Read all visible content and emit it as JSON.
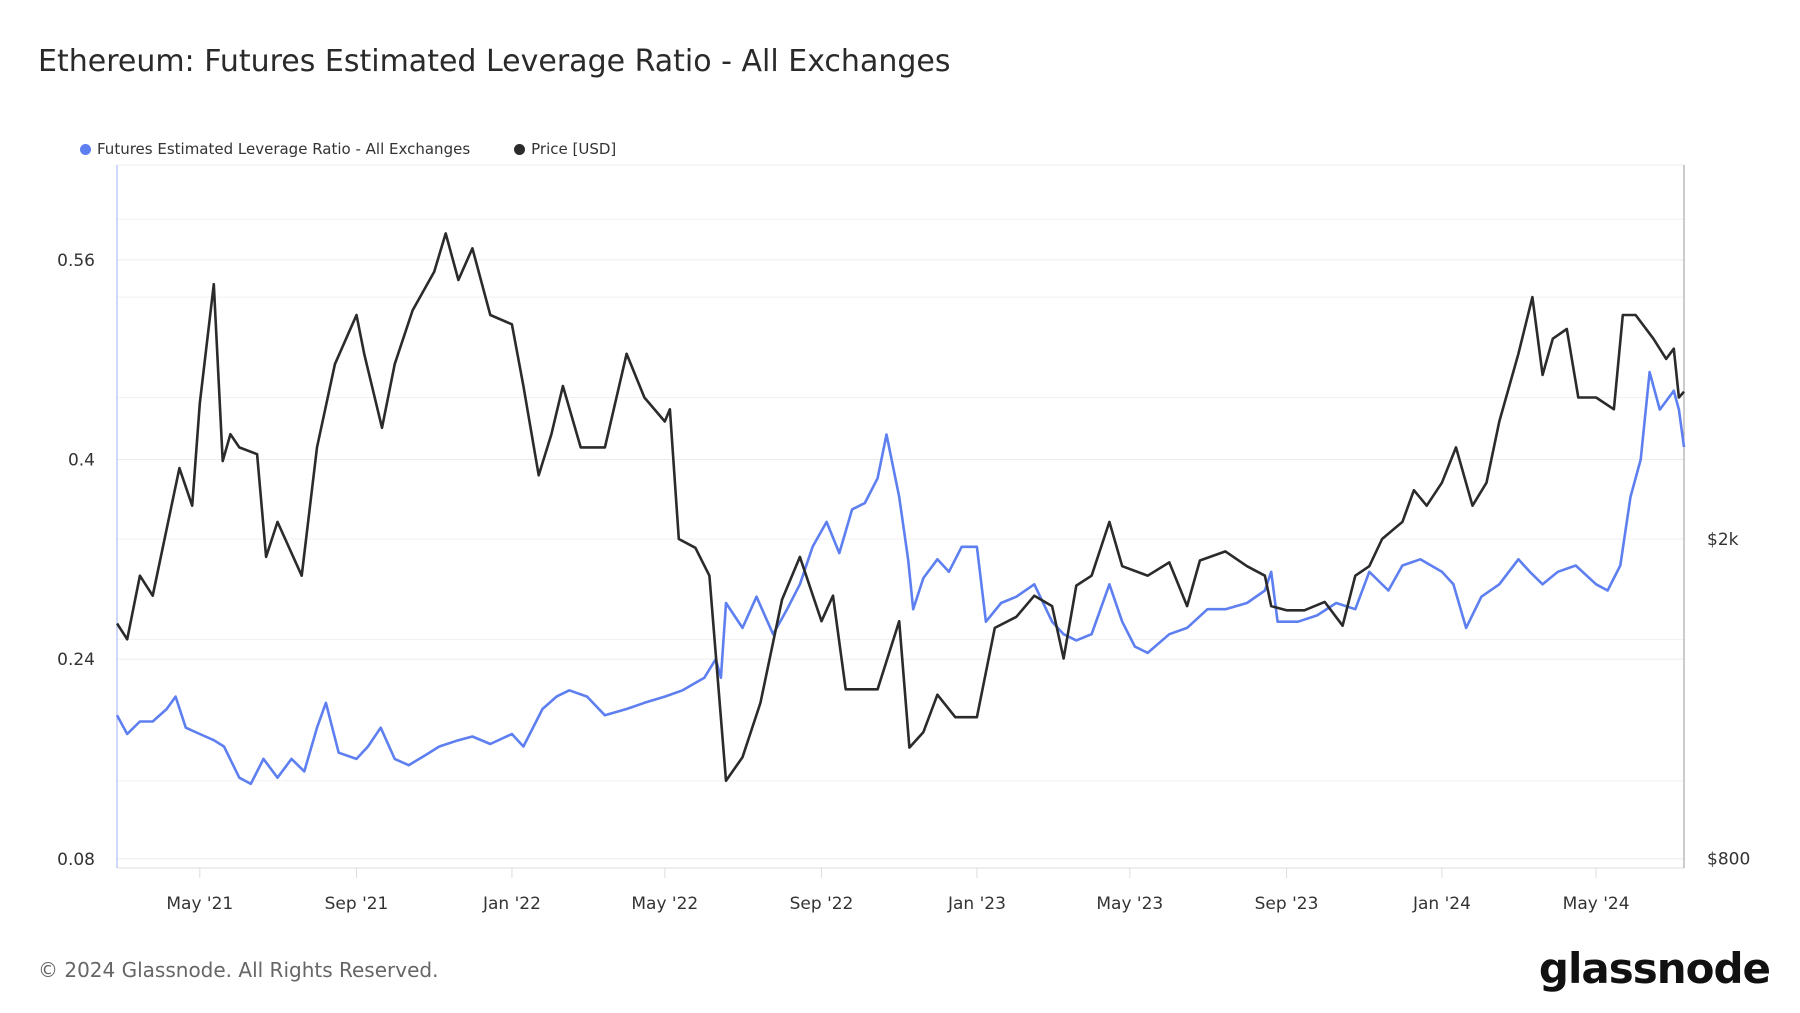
{
  "title": "Ethereum: Futures Estimated Leverage Ratio - All Exchanges",
  "footer": "© 2024 Glassnode. All Rights Reserved.",
  "logo": "glassnode",
  "chart_data": {
    "type": "line",
    "title": "Ethereum: Futures Estimated Leverage Ratio - All Exchanges",
    "legend_position": "top-left",
    "grid": true,
    "x_range": [
      "2021-02-25",
      "2024-07-09"
    ],
    "x_ticks": [
      {
        "date": "2021-05-01",
        "label": "May '21"
      },
      {
        "date": "2021-09-01",
        "label": "Sep '21"
      },
      {
        "date": "2022-01-01",
        "label": "Jan '22"
      },
      {
        "date": "2022-05-01",
        "label": "May '22"
      },
      {
        "date": "2022-09-01",
        "label": "Sep '22"
      },
      {
        "date": "2023-01-01",
        "label": "Jan '23"
      },
      {
        "date": "2023-05-01",
        "label": "May '23"
      },
      {
        "date": "2023-09-01",
        "label": "Sep '23"
      },
      {
        "date": "2024-01-01",
        "label": "Jan '24"
      },
      {
        "date": "2024-05-01",
        "label": "May '24"
      }
    ],
    "y_left": {
      "scale": "linear",
      "range": [
        0.0726,
        0.636
      ],
      "ticks": [
        {
          "v": 0.08,
          "label": "0.08"
        },
        {
          "v": 0.24,
          "label": "0.24"
        },
        {
          "v": 0.4,
          "label": "0.4"
        },
        {
          "v": 0.56,
          "label": "0.56"
        }
      ]
    },
    "y_right": {
      "scale": "log",
      "range": [
        779,
        5840
      ],
      "ticks": [
        {
          "v": 800,
          "label": "$800"
        },
        {
          "v": 2000,
          "label": "$2k"
        }
      ]
    },
    "series": [
      {
        "name": "Futures Estimated Leverage Ratio - All Exchanges",
        "axis": "left",
        "color": "#5e7ff0",
        "points": [
          [
            "2021-02-25",
            0.195
          ],
          [
            "2021-03-05",
            0.18
          ],
          [
            "2021-03-15",
            0.19
          ],
          [
            "2021-03-25",
            0.19
          ],
          [
            "2021-04-05",
            0.2
          ],
          [
            "2021-04-12",
            0.21
          ],
          [
            "2021-04-20",
            0.185
          ],
          [
            "2021-05-01",
            0.18
          ],
          [
            "2021-05-12",
            0.175
          ],
          [
            "2021-05-20",
            0.17
          ],
          [
            "2021-06-01",
            0.145
          ],
          [
            "2021-06-10",
            0.14
          ],
          [
            "2021-06-20",
            0.16
          ],
          [
            "2021-07-01",
            0.145
          ],
          [
            "2021-07-12",
            0.16
          ],
          [
            "2021-07-22",
            0.15
          ],
          [
            "2021-08-01",
            0.185
          ],
          [
            "2021-08-08",
            0.205
          ],
          [
            "2021-08-18",
            0.165
          ],
          [
            "2021-09-01",
            0.16
          ],
          [
            "2021-09-10",
            0.17
          ],
          [
            "2021-09-20",
            0.185
          ],
          [
            "2021-10-01",
            0.16
          ],
          [
            "2021-10-12",
            0.155
          ],
          [
            "2021-10-25",
            0.163
          ],
          [
            "2021-11-05",
            0.17
          ],
          [
            "2021-11-20",
            0.175
          ],
          [
            "2021-12-01",
            0.178
          ],
          [
            "2021-12-15",
            0.172
          ],
          [
            "2022-01-01",
            0.18
          ],
          [
            "2022-01-10",
            0.17
          ],
          [
            "2022-01-25",
            0.2
          ],
          [
            "2022-02-05",
            0.21
          ],
          [
            "2022-02-15",
            0.215
          ],
          [
            "2022-03-01",
            0.21
          ],
          [
            "2022-03-15",
            0.195
          ],
          [
            "2022-04-01",
            0.2
          ],
          [
            "2022-04-15",
            0.205
          ],
          [
            "2022-05-01",
            0.21
          ],
          [
            "2022-05-15",
            0.215
          ],
          [
            "2022-06-01",
            0.225
          ],
          [
            "2022-06-10",
            0.24
          ],
          [
            "2022-06-14",
            0.225
          ],
          [
            "2022-06-18",
            0.285
          ],
          [
            "2022-07-01",
            0.265
          ],
          [
            "2022-07-12",
            0.29
          ],
          [
            "2022-07-25",
            0.26
          ],
          [
            "2022-08-05",
            0.28
          ],
          [
            "2022-08-15",
            0.3
          ],
          [
            "2022-08-25",
            0.33
          ],
          [
            "2022-09-05",
            0.35
          ],
          [
            "2022-09-15",
            0.325
          ],
          [
            "2022-09-25",
            0.36
          ],
          [
            "2022-10-05",
            0.365
          ],
          [
            "2022-10-15",
            0.385
          ],
          [
            "2022-10-22",
            0.42
          ],
          [
            "2022-11-01",
            0.37
          ],
          [
            "2022-11-08",
            0.32
          ],
          [
            "2022-11-12",
            0.28
          ],
          [
            "2022-11-20",
            0.305
          ],
          [
            "2022-12-01",
            0.32
          ],
          [
            "2022-12-10",
            0.31
          ],
          [
            "2022-12-20",
            0.33
          ],
          [
            "2023-01-01",
            0.33
          ],
          [
            "2023-01-08",
            0.27
          ],
          [
            "2023-01-20",
            0.285
          ],
          [
            "2023-02-01",
            0.29
          ],
          [
            "2023-02-15",
            0.3
          ],
          [
            "2023-03-01",
            0.27
          ],
          [
            "2023-03-10",
            0.26
          ],
          [
            "2023-03-20",
            0.255
          ],
          [
            "2023-04-01",
            0.26
          ],
          [
            "2023-04-15",
            0.3
          ],
          [
            "2023-04-25",
            0.27
          ],
          [
            "2023-05-05",
            0.25
          ],
          [
            "2023-05-15",
            0.245
          ],
          [
            "2023-06-01",
            0.26
          ],
          [
            "2023-06-15",
            0.265
          ],
          [
            "2023-07-01",
            0.28
          ],
          [
            "2023-07-15",
            0.28
          ],
          [
            "2023-08-01",
            0.285
          ],
          [
            "2023-08-15",
            0.295
          ],
          [
            "2023-08-20",
            0.31
          ],
          [
            "2023-08-25",
            0.27
          ],
          [
            "2023-09-10",
            0.27
          ],
          [
            "2023-09-25",
            0.275
          ],
          [
            "2023-10-10",
            0.285
          ],
          [
            "2023-10-25",
            0.28
          ],
          [
            "2023-11-05",
            0.31
          ],
          [
            "2023-11-20",
            0.295
          ],
          [
            "2023-12-01",
            0.315
          ],
          [
            "2023-12-15",
            0.32
          ],
          [
            "2024-01-01",
            0.31
          ],
          [
            "2024-01-10",
            0.3
          ],
          [
            "2024-01-20",
            0.265
          ],
          [
            "2024-02-01",
            0.29
          ],
          [
            "2024-02-15",
            0.3
          ],
          [
            "2024-03-01",
            0.32
          ],
          [
            "2024-03-10",
            0.31
          ],
          [
            "2024-03-20",
            0.3
          ],
          [
            "2024-04-01",
            0.31
          ],
          [
            "2024-04-15",
            0.315
          ],
          [
            "2024-05-01",
            0.3
          ],
          [
            "2024-05-10",
            0.295
          ],
          [
            "2024-05-20",
            0.315
          ],
          [
            "2024-05-28",
            0.37
          ],
          [
            "2024-06-05",
            0.4
          ],
          [
            "2024-06-12",
            0.47
          ],
          [
            "2024-06-20",
            0.44
          ],
          [
            "2024-07-01",
            0.455
          ],
          [
            "2024-07-05",
            0.44
          ],
          [
            "2024-07-09",
            0.41
          ]
        ]
      },
      {
        "name": "Price [USD]",
        "axis": "right",
        "color": "#2b2b2b",
        "points": [
          [
            "2021-02-25",
            1570
          ],
          [
            "2021-03-05",
            1500
          ],
          [
            "2021-03-15",
            1800
          ],
          [
            "2021-03-25",
            1700
          ],
          [
            "2021-04-01",
            1920
          ],
          [
            "2021-04-15",
            2450
          ],
          [
            "2021-04-25",
            2200
          ],
          [
            "2021-05-01",
            2950
          ],
          [
            "2021-05-12",
            4150
          ],
          [
            "2021-05-19",
            2500
          ],
          [
            "2021-05-25",
            2700
          ],
          [
            "2021-06-01",
            2600
          ],
          [
            "2021-06-15",
            2550
          ],
          [
            "2021-06-22",
            1900
          ],
          [
            "2021-07-01",
            2100
          ],
          [
            "2021-07-20",
            1800
          ],
          [
            "2021-08-01",
            2600
          ],
          [
            "2021-08-15",
            3300
          ],
          [
            "2021-09-01",
            3800
          ],
          [
            "2021-09-07",
            3400
          ],
          [
            "2021-09-21",
            2750
          ],
          [
            "2021-10-01",
            3300
          ],
          [
            "2021-10-15",
            3850
          ],
          [
            "2021-11-01",
            4300
          ],
          [
            "2021-11-10",
            4800
          ],
          [
            "2021-11-20",
            4200
          ],
          [
            "2021-12-01",
            4600
          ],
          [
            "2021-12-15",
            3800
          ],
          [
            "2022-01-01",
            3700
          ],
          [
            "2022-01-10",
            3100
          ],
          [
            "2022-01-22",
            2400
          ],
          [
            "2022-02-01",
            2700
          ],
          [
            "2022-02-10",
            3100
          ],
          [
            "2022-02-24",
            2600
          ],
          [
            "2022-03-15",
            2600
          ],
          [
            "2022-04-01",
            3400
          ],
          [
            "2022-04-15",
            3000
          ],
          [
            "2022-05-01",
            2800
          ],
          [
            "2022-05-05",
            2900
          ],
          [
            "2022-05-12",
            2000
          ],
          [
            "2022-05-25",
            1950
          ],
          [
            "2022-06-05",
            1800
          ],
          [
            "2022-06-18",
            1000
          ],
          [
            "2022-07-01",
            1070
          ],
          [
            "2022-07-15",
            1250
          ],
          [
            "2022-08-01",
            1680
          ],
          [
            "2022-08-15",
            1900
          ],
          [
            "2022-09-01",
            1580
          ],
          [
            "2022-09-10",
            1700
          ],
          [
            "2022-09-20",
            1300
          ],
          [
            "2022-10-01",
            1300
          ],
          [
            "2022-10-15",
            1300
          ],
          [
            "2022-11-01",
            1580
          ],
          [
            "2022-11-09",
            1100
          ],
          [
            "2022-11-20",
            1150
          ],
          [
            "2022-12-01",
            1280
          ],
          [
            "2022-12-15",
            1200
          ],
          [
            "2023-01-01",
            1200
          ],
          [
            "2023-01-15",
            1550
          ],
          [
            "2023-02-01",
            1600
          ],
          [
            "2023-02-15",
            1700
          ],
          [
            "2023-03-01",
            1650
          ],
          [
            "2023-03-10",
            1420
          ],
          [
            "2023-03-20",
            1750
          ],
          [
            "2023-04-01",
            1800
          ],
          [
            "2023-04-15",
            2100
          ],
          [
            "2023-04-25",
            1850
          ],
          [
            "2023-05-15",
            1800
          ],
          [
            "2023-06-01",
            1870
          ],
          [
            "2023-06-15",
            1650
          ],
          [
            "2023-06-25",
            1880
          ],
          [
            "2023-07-15",
            1930
          ],
          [
            "2023-08-01",
            1850
          ],
          [
            "2023-08-15",
            1800
          ],
          [
            "2023-08-20",
            1650
          ],
          [
            "2023-09-01",
            1630
          ],
          [
            "2023-09-15",
            1630
          ],
          [
            "2023-10-01",
            1670
          ],
          [
            "2023-10-15",
            1560
          ],
          [
            "2023-10-25",
            1800
          ],
          [
            "2023-11-05",
            1850
          ],
          [
            "2023-11-15",
            2000
          ],
          [
            "2023-12-01",
            2100
          ],
          [
            "2023-12-10",
            2300
          ],
          [
            "2023-12-20",
            2200
          ],
          [
            "2024-01-01",
            2350
          ],
          [
            "2024-01-12",
            2600
          ],
          [
            "2024-01-25",
            2200
          ],
          [
            "2024-02-05",
            2350
          ],
          [
            "2024-02-15",
            2800
          ],
          [
            "2024-03-01",
            3400
          ],
          [
            "2024-03-12",
            4000
          ],
          [
            "2024-03-20",
            3200
          ],
          [
            "2024-03-28",
            3550
          ],
          [
            "2024-04-08",
            3650
          ],
          [
            "2024-04-17",
            3000
          ],
          [
            "2024-05-01",
            3000
          ],
          [
            "2024-05-15",
            2900
          ],
          [
            "2024-05-22",
            3800
          ],
          [
            "2024-06-01",
            3800
          ],
          [
            "2024-06-15",
            3550
          ],
          [
            "2024-06-25",
            3350
          ],
          [
            "2024-07-01",
            3450
          ],
          [
            "2024-07-05",
            3000
          ],
          [
            "2024-07-09",
            3050
          ]
        ]
      }
    ]
  }
}
